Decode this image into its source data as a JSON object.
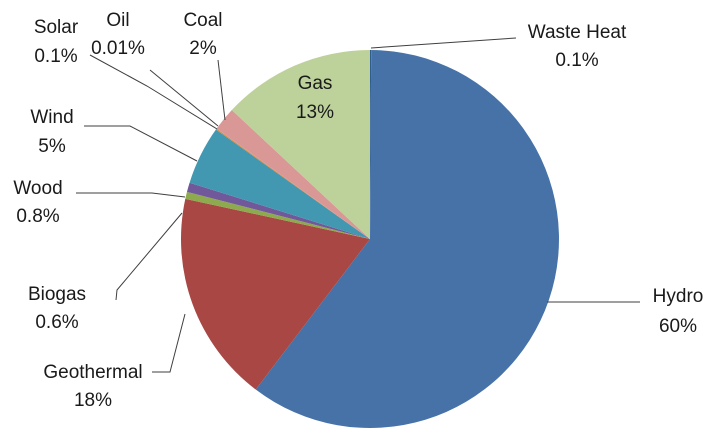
{
  "chart_data": {
    "type": "pie",
    "title": "",
    "slices": [
      {
        "key": "waste_heat",
        "label": "Waste Heat",
        "display": "0.1%",
        "value": 0.1,
        "color": "#2E5D8F"
      },
      {
        "key": "hydro",
        "label": "Hydro",
        "display": "60%",
        "value": 60,
        "color": "#4672A8"
      },
      {
        "key": "geothermal",
        "label": "Geothermal",
        "display": "18%",
        "value": 18,
        "color": "#A84744"
      },
      {
        "key": "biogas",
        "label": "Biogas",
        "display": "0.6%",
        "value": 0.6,
        "color": "#8EAA4F"
      },
      {
        "key": "wood",
        "label": "Wood",
        "display": "0.8%",
        "value": 0.8,
        "color": "#71589A"
      },
      {
        "key": "wind",
        "label": "Wind",
        "display": "5%",
        "value": 5,
        "color": "#4398B1"
      },
      {
        "key": "solar",
        "label": "Solar",
        "display": "0.1%",
        "value": 0.1,
        "color": "#DB8A3D"
      },
      {
        "key": "oil",
        "label": "Oil",
        "display": "0.01%",
        "value": 0.01,
        "color": "#95B3D9"
      },
      {
        "key": "coal",
        "label": "Coal",
        "display": "2%",
        "value": 2,
        "color": "#D99795"
      },
      {
        "key": "gas",
        "label": "Gas",
        "display": "13%",
        "value": 13,
        "color": "#BDD19A"
      }
    ],
    "legend": "none"
  }
}
